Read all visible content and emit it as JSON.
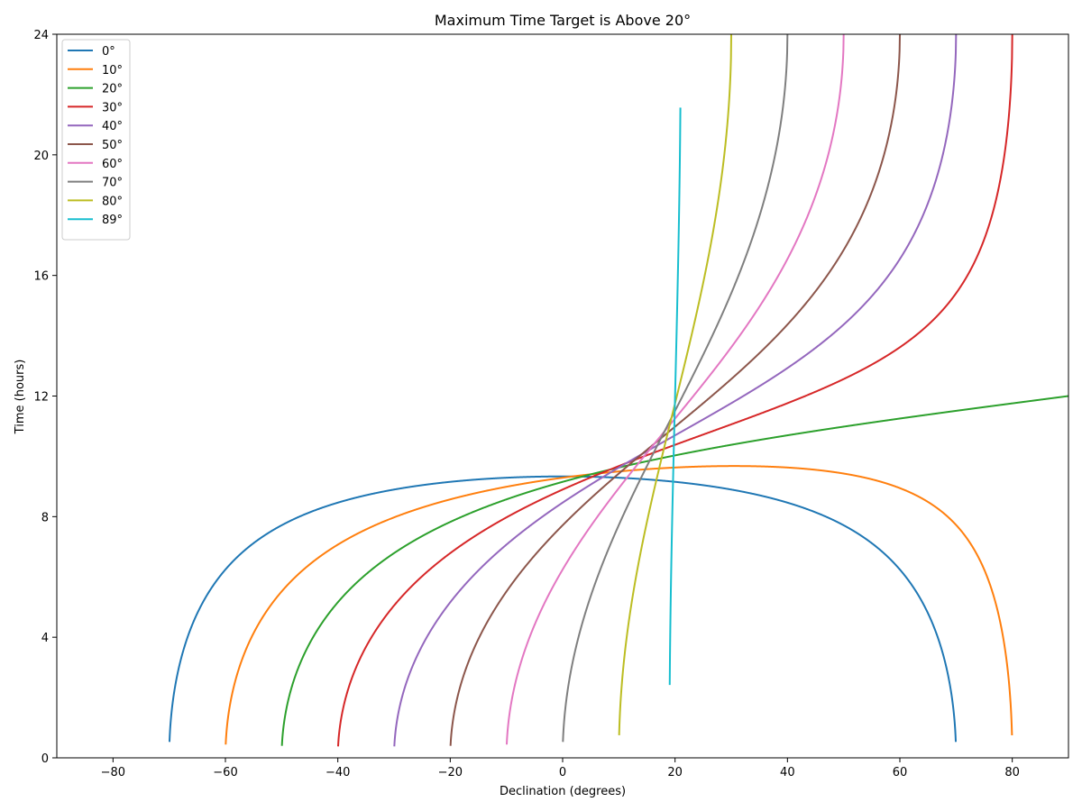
{
  "chart_data": {
    "type": "line",
    "title": "Maximum Time Target is Above 20°",
    "xlabel": "Declination (degrees)",
    "ylabel": "Time (hours)",
    "xlim": [
      -90,
      90
    ],
    "ylim": [
      0,
      24
    ],
    "xticks": [
      -80,
      -60,
      -40,
      -20,
      0,
      20,
      40,
      60,
      80
    ],
    "yticks": [
      0,
      4,
      8,
      12,
      16,
      20,
      24
    ],
    "grid": false,
    "legend_position": "top-left",
    "altitude_deg": 20,
    "series": [
      {
        "name": "0°",
        "latitude": 0,
        "color": "#1f77b4"
      },
      {
        "name": "10°",
        "latitude": 10,
        "color": "#ff7f0e"
      },
      {
        "name": "20°",
        "latitude": 20,
        "color": "#2ca02c"
      },
      {
        "name": "30°",
        "latitude": 30,
        "color": "#d62728"
      },
      {
        "name": "40°",
        "latitude": 40,
        "color": "#9467bd"
      },
      {
        "name": "50°",
        "latitude": 50,
        "color": "#8c564b"
      },
      {
        "name": "60°",
        "latitude": 60,
        "color": "#e377c2"
      },
      {
        "name": "70°",
        "latitude": 70,
        "color": "#7f7f7f"
      },
      {
        "name": "80°",
        "latitude": 80,
        "color": "#bcbd22"
      },
      {
        "name": "89°",
        "latitude": 89,
        "color": "#17becf"
      }
    ]
  }
}
